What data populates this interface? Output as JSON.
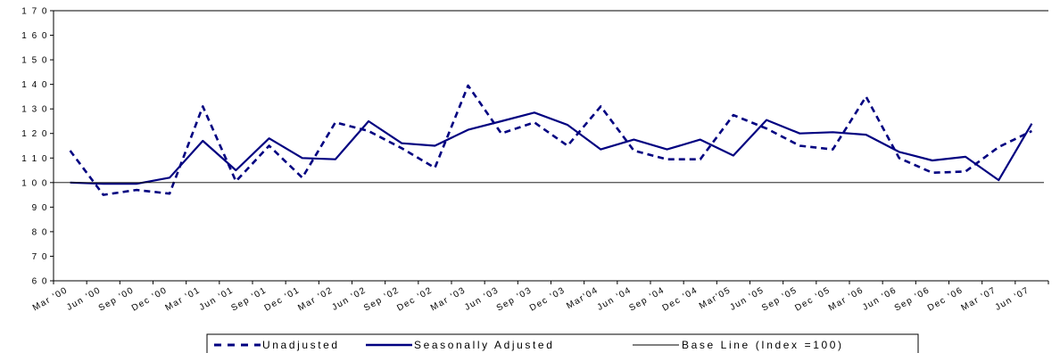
{
  "chart_data": {
    "type": "line",
    "categories": [
      "Mar '00",
      "Jun '00",
      "Sep '00",
      "Dec '00",
      "Mar '01",
      "Jun '01",
      "Sep '01",
      "Dec '01",
      "Mar '02",
      "Jun '02",
      "Sep '02",
      "Dec '02",
      "Mar '03",
      "Jun '03",
      "Sep '03",
      "Dec '03",
      "Mar '04",
      "Jun '04",
      "Sep '04",
      "Dec '04",
      "Mar '05",
      "Jun '05",
      "Sep '05",
      "Dec '05",
      "Mar '06",
      "Jun '06",
      "Sep '06",
      "Dec '06",
      "Mar '07",
      "Jun '07"
    ],
    "series": [
      {
        "name": "Unadjusted",
        "style": "dashed",
        "color": "#000080",
        "values": [
          113,
          95,
          97,
          95.5,
          131,
          100.5,
          115,
          102,
          124.5,
          121,
          114,
          106,
          139.5,
          120,
          124.5,
          115,
          131,
          113,
          109.5,
          109.5,
          127.5,
          122,
          115,
          113.5,
          135,
          110,
          104,
          104.5,
          114.5,
          121
        ]
      },
      {
        "name": "Seasonally Adjusted",
        "style": "solid",
        "color": "#000080",
        "values": [
          100,
          99.5,
          99.5,
          102,
          117,
          105,
          118,
          110,
          109.5,
          125,
          116,
          115,
          121.5,
          125,
          128.5,
          123.5,
          113.5,
          117.5,
          113.5,
          117.5,
          111,
          125.5,
          120,
          120.5,
          119.5,
          112.5,
          109,
          110.5,
          101,
          124
        ]
      },
      {
        "name": "Base Line (Index =100)",
        "style": "solid-thin",
        "color": "#000000",
        "constant": 100
      }
    ],
    "y_ticks": [
      "6 0",
      "7 0",
      "8 0",
      "9 0",
      "1 0 0",
      "1 1 0",
      "1 2 0",
      "1 3 0",
      "1 4 0",
      "1 5 0",
      "1 6 0",
      "1 7 0"
    ],
    "x_tick_labels": [
      "Mar '00",
      "Jun '00",
      "Sep '00",
      "Dec '00",
      "Mar '01",
      "Jun '01",
      "Sep '01",
      "Dec '01",
      "Mar '02",
      "Jun '02",
      "Sep '02",
      "Dec '02",
      "Mar '03",
      "Jun '03",
      "Sep '03",
      "Dec '03",
      "Mar'04",
      "Jun '04",
      "Sep '04",
      "Dec '04",
      "Mar'05",
      "Jun '05",
      "Sep '05",
      "Dec '05",
      "Mar '06",
      "Jun '06",
      "Sep '06",
      "Dec '06",
      "Mar '07",
      "Jun '07"
    ],
    "ylim": [
      60,
      170
    ],
    "grid": false,
    "legend": {
      "position": "bottom",
      "labels": [
        "Unadjusted",
        "Seasonally Adjusted",
        "Base Line (Index =100)"
      ]
    },
    "title": "",
    "xlabel": "",
    "ylabel": ""
  }
}
